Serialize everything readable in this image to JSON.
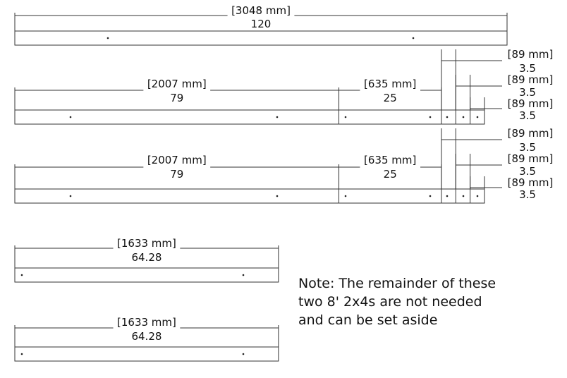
{
  "boards": [
    {
      "segments": [
        {
          "mm": "[3048 mm]",
          "inches": "120"
        }
      ]
    },
    {
      "segments": [
        {
          "mm": "[2007 mm]",
          "inches": "79"
        },
        {
          "mm": "[635 mm]",
          "inches": "25"
        },
        {
          "mm": "[89 mm]",
          "inches": "3.5"
        },
        {
          "mm": "[89 mm]",
          "inches": "3.5"
        },
        {
          "mm": "[89 mm]",
          "inches": "3.5"
        }
      ]
    },
    {
      "segments": [
        {
          "mm": "[2007 mm]",
          "inches": "79"
        },
        {
          "mm": "[635 mm]",
          "inches": "25"
        },
        {
          "mm": "[89 mm]",
          "inches": "3.5"
        },
        {
          "mm": "[89 mm]",
          "inches": "3.5"
        },
        {
          "mm": "[89 mm]",
          "inches": "3.5"
        }
      ]
    },
    {
      "segments": [
        {
          "mm": "[1633 mm]",
          "inches": "64.28"
        }
      ]
    },
    {
      "segments": [
        {
          "mm": "[1633 mm]",
          "inches": "64.28"
        }
      ]
    }
  ],
  "note": {
    "lines": [
      "Note: The remainder of these",
      "two 8' 2x4s are not needed",
      "and can be set aside"
    ]
  }
}
